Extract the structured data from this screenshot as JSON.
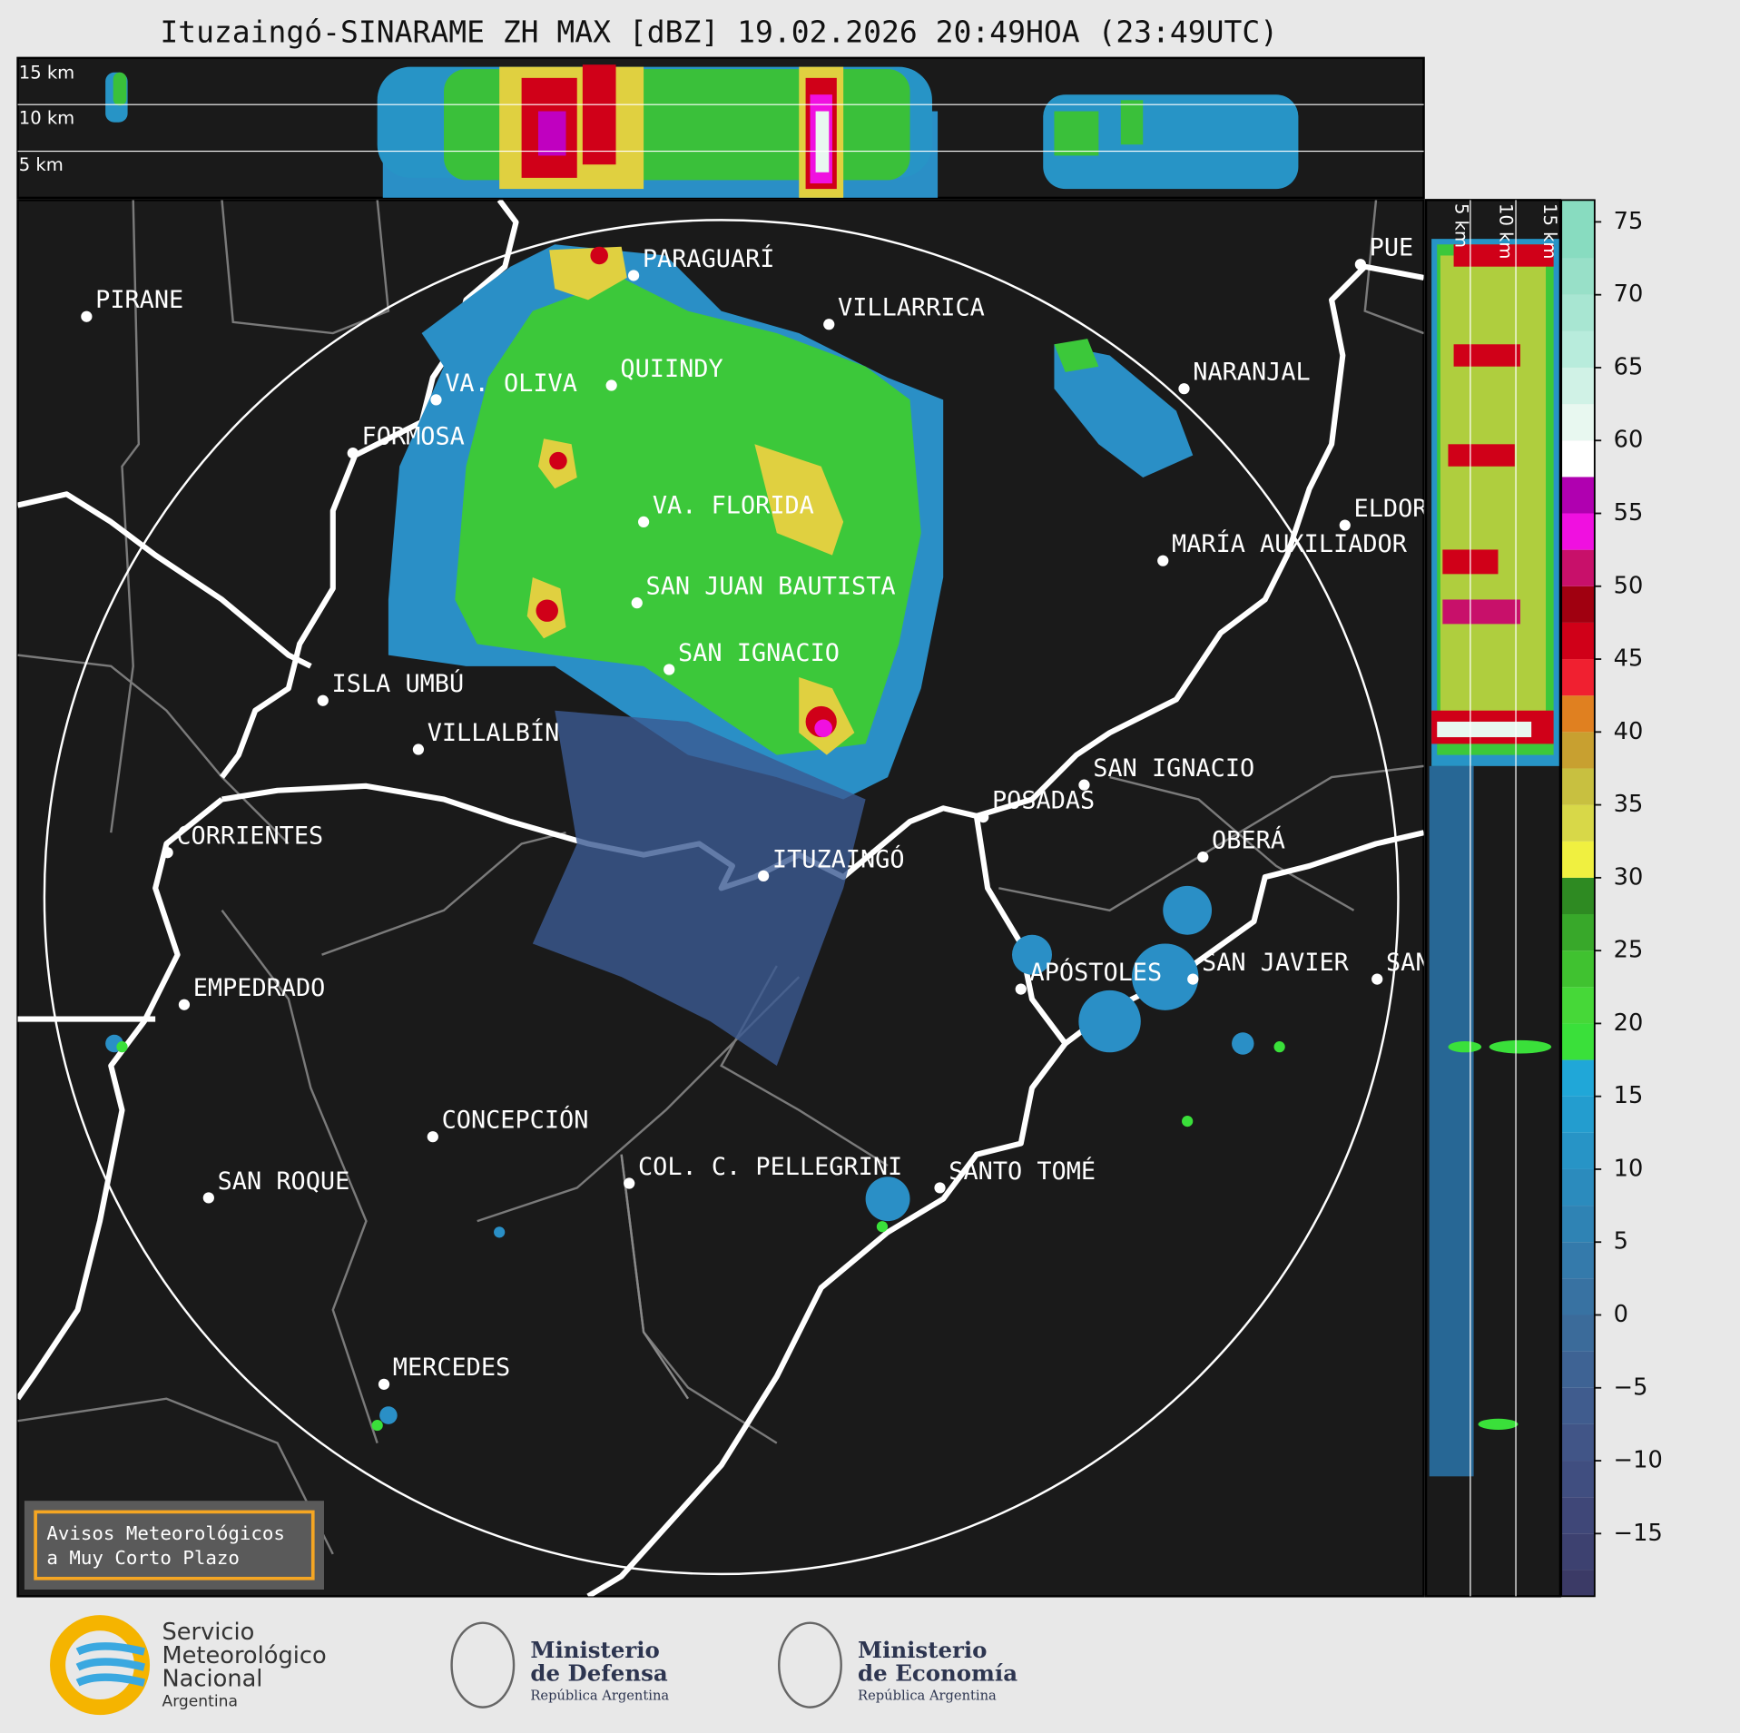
{
  "title": "Ituzaingó-SINARAME ZH MAX [dBZ] 19.02.2026 20:49HOA (23:49UTC)",
  "top_panel": {
    "height_labels": [
      "15 km",
      "10 km",
      "5 km"
    ]
  },
  "side_panel": {
    "height_labels": [
      "5 km",
      "10 km",
      "15 km"
    ]
  },
  "map": {
    "places": [
      "PIRANE",
      "PARAGUARÍ",
      "VILLARRICA",
      "QUIINDY",
      "VA. OLIVA",
      "NARANJAL",
      "FORMOSA",
      "VA. FLORIDA",
      "ELDOR",
      "MARÍA AUXILIADOR",
      "SAN JUAN BAUTISTA",
      "SAN IGNACIO",
      "ISLA UMBÚ",
      "VILLALBÍN",
      "SAN IGNACIO",
      "POSADAS",
      "CORRIENTES",
      "OBERÁ",
      "ITUZAINGÓ",
      "APÓSTOLES",
      "SAN JAVIER",
      "SAN",
      "EMPEDRADO",
      "CONCEPCIÓN",
      "COL. C. PELLEGRINI",
      "SANTO TOMÉ",
      "SAN ROQUE",
      "MERCEDES",
      "PUE"
    ]
  },
  "colorbar": {
    "ticks": [
      {
        "value": -15,
        "label": "−15"
      },
      {
        "value": -10,
        "label": "−10"
      },
      {
        "value": -5,
        "label": "−5"
      },
      0,
      5,
      10,
      15,
      20,
      25,
      30,
      35,
      40,
      45,
      50,
      55,
      60,
      65,
      70,
      75
    ],
    "bounds": [
      -19.3,
      -17.5,
      -15,
      -12.5,
      -10,
      -7.5,
      -5,
      -2.5,
      0,
      2.5,
      5,
      7.5,
      10,
      12.5,
      15,
      17.5,
      20,
      22.5,
      25,
      27.5,
      30,
      32.5,
      35,
      37.5,
      40,
      42.5,
      45,
      47.5,
      50,
      52.5,
      55,
      57.5,
      60,
      62.5,
      65,
      67.5,
      70,
      72.5,
      76.5
    ],
    "colors": [
      "#3b3a66",
      "#3d4170",
      "#3f4778",
      "#404e80",
      "#415587",
      "#405c8e",
      "#3e6394",
      "#3b6b9a",
      "#3872a2",
      "#347aab",
      "#2f83b4",
      "#2b8bbd",
      "#2794c6",
      "#239dcf",
      "#20a7d8",
      "#3ae03a",
      "#46d838",
      "#40c230",
      "#38a82a",
      "#2e8a22",
      "#f0f040",
      "#d8d848",
      "#c8c040",
      "#c8a030",
      "#e08020",
      "#f02030",
      "#d00018",
      "#a00010",
      "#c8106a",
      "#f010e0",
      "#b000b0",
      "#ffffff",
      "#e8f8f0",
      "#d0f2e6",
      "#b8ecdc",
      "#a8e6d2",
      "#98e0c8",
      "#88dcc0"
    ]
  },
  "notice": [
    "Avisos Meteorológicos",
    "a Muy Corto Plazo"
  ],
  "logos": [
    [
      "Servicio",
      "Meteorológico",
      "Nacional",
      "Argentina"
    ],
    [
      "Ministerio",
      "de Defensa",
      "República Argentina"
    ],
    [
      "Ministerio",
      "de Economía",
      "República Argentina"
    ]
  ]
}
